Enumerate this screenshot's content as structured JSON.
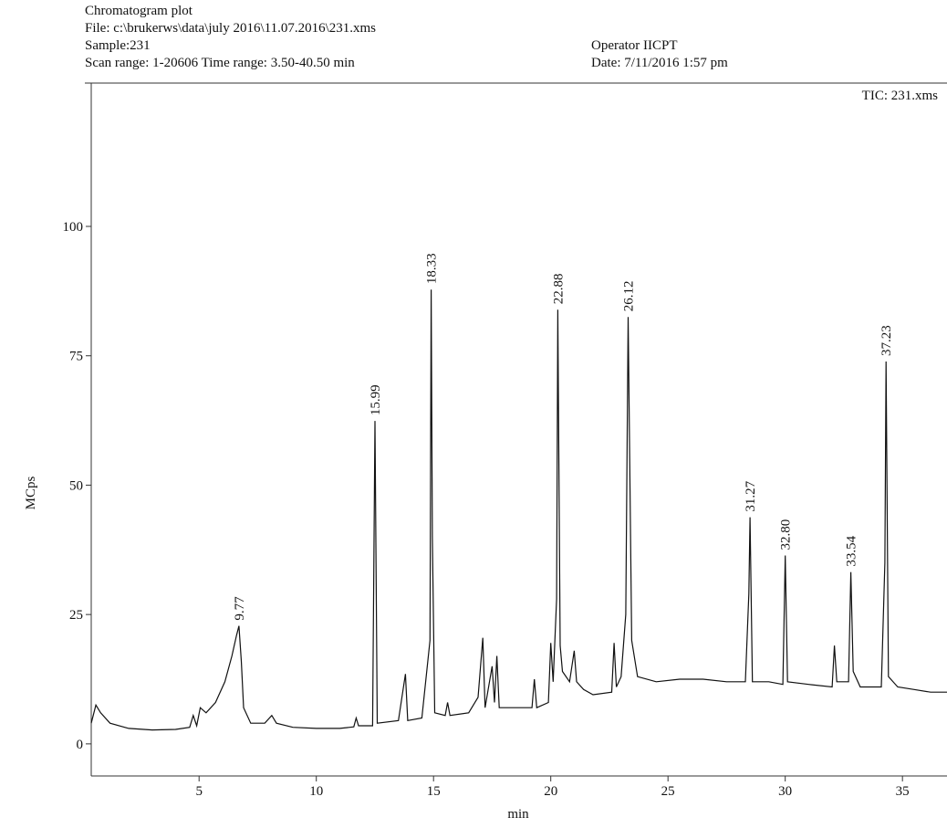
{
  "chart_data": {
    "type": "line",
    "header": [
      "Chromatogram plot",
      "File: c:\\brukerws\\data\\july 2016\\11.07.2016\\231.xms",
      "Sample:231",
      "Scan range: 1-20606 Time range: 3.50-40.50 min"
    ],
    "header_right": [
      "Operator IICPT",
      "Date: 7/11/2016 1:57 pm"
    ],
    "x_label": "min",
    "y_label": "MCps",
    "xlim": [
      0.4,
      36.9
    ],
    "ylim": [
      -6.2,
      127.7
    ],
    "xticks": [
      5,
      10,
      15,
      20,
      25,
      30,
      35
    ],
    "yticks": [
      0,
      25,
      50,
      75,
      100
    ],
    "x": [
      0.4,
      0.6,
      0.8,
      1.2,
      2,
      3,
      4,
      4.6,
      4.75,
      4.9,
      5.05,
      5.3,
      5.7,
      6.1,
      6.4,
      6.6,
      6.7,
      6.8,
      6.9,
      7.2,
      7.8,
      8.1,
      8.3,
      9,
      10,
      11,
      11.6,
      11.7,
      11.8,
      12.4,
      12.5,
      12.6,
      13.5,
      13.8,
      13.9,
      14.5,
      14.85,
      14.9,
      14.95,
      15.05,
      15.5,
      15.6,
      15.7,
      16.5,
      16.9,
      17.1,
      17.2,
      17.5,
      17.6,
      17.7,
      17.8,
      18.5,
      19.2,
      19.3,
      19.4,
      19.9,
      20.0,
      20.1,
      20.25,
      20.3,
      20.4,
      20.5,
      20.8,
      21.0,
      21.1,
      21.4,
      21.8,
      22.6,
      22.7,
      22.8,
      23.0,
      23.2,
      23.3,
      23.45,
      23.7,
      24.5,
      25.5,
      26.5,
      27.5,
      28.3,
      28.45,
      28.5,
      28.6,
      29.3,
      29.9,
      30.0,
      30.1,
      31.0,
      32.0,
      32.1,
      32.2,
      32.7,
      32.8,
      32.9,
      33.2,
      34.1,
      34.25,
      34.3,
      34.4,
      34.8,
      35.5,
      36.2,
      36.9
    ],
    "series": [
      {
        "name": "TIC: 231.xms",
        "color": "#111111",
        "values": [
          4,
          7.5,
          6,
          4,
          3,
          2.7,
          2.8,
          3.2,
          5.5,
          3.5,
          7,
          6,
          8,
          12,
          17,
          21,
          22.8,
          16,
          7,
          4,
          4,
          5.5,
          4,
          3.2,
          3,
          3,
          3.3,
          5,
          3.5,
          3.5,
          62.4,
          4,
          4.5,
          13.5,
          4.5,
          5,
          20,
          87.8,
          40,
          6,
          5.5,
          8,
          5.5,
          6,
          9,
          20.5,
          7,
          15,
          8,
          17,
          7,
          7,
          7,
          12.5,
          7,
          8,
          19.5,
          12,
          28,
          83.9,
          19,
          14,
          12,
          18,
          12,
          10.5,
          9.5,
          10,
          19.5,
          11,
          13,
          25,
          82.5,
          20,
          13,
          12,
          12.5,
          12.5,
          12,
          12,
          29,
          43.8,
          12,
          12,
          11.5,
          36.4,
          12,
          11.5,
          11,
          19,
          12,
          12,
          33.2,
          14,
          11,
          11,
          35,
          73.9,
          13,
          11,
          10.5,
          10,
          10
        ]
      }
    ],
    "annotations": [
      {
        "text": "9.77",
        "x": 6.7,
        "y": 22.8
      },
      {
        "text": "15.99",
        "x": 12.5,
        "y": 62.4
      },
      {
        "text": "18.33",
        "x": 14.9,
        "y": 87.8
      },
      {
        "text": "22.88",
        "x": 20.3,
        "y": 83.9
      },
      {
        "text": "26.12",
        "x": 23.3,
        "y": 82.5
      },
      {
        "text": "31.27",
        "x": 28.5,
        "y": 43.8
      },
      {
        "text": "32.80",
        "x": 30.0,
        "y": 36.4
      },
      {
        "text": "33.54",
        "x": 32.8,
        "y": 33.2
      },
      {
        "text": "37.23",
        "x": 34.3,
        "y": 73.9
      }
    ]
  }
}
